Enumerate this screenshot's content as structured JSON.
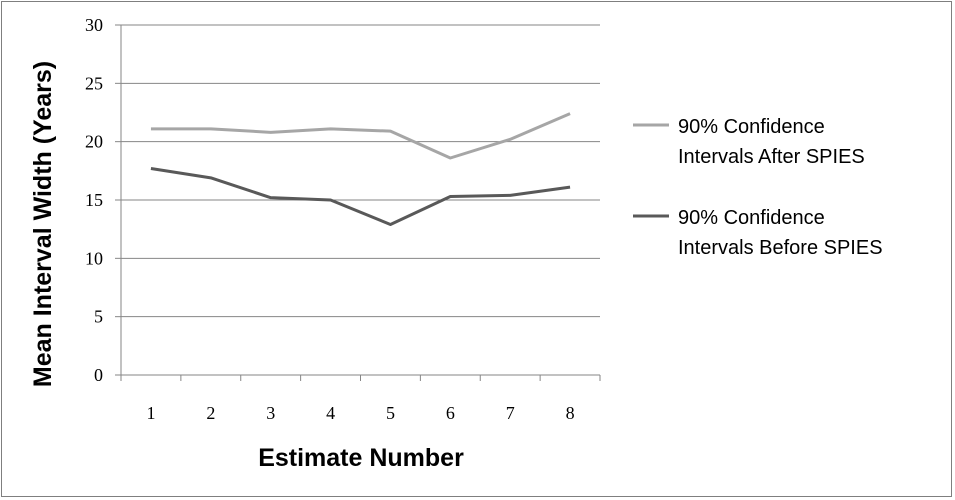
{
  "chart_data": {
    "type": "line",
    "categories": [
      "1",
      "2",
      "3",
      "4",
      "5",
      "6",
      "7",
      "8"
    ],
    "xlabel": "Estimate Number",
    "ylabel": "Mean Interval Width (Years)",
    "ylim": [
      0,
      30
    ],
    "yticks": [
      "0",
      "5",
      "10",
      "15",
      "20",
      "25",
      "30"
    ],
    "grid": "horizontal",
    "legend_position": "right",
    "series": [
      {
        "name_lines": [
          "90% Confidence",
          "Intervals After SPIES"
        ],
        "color": "#a6a6a6",
        "values": [
          21.1,
          21.1,
          20.8,
          21.1,
          20.9,
          18.6,
          20.2,
          22.4
        ]
      },
      {
        "name_lines": [
          "90% Confidence",
          "Intervals Before SPIES"
        ],
        "color": "#595959",
        "values": [
          17.7,
          16.9,
          15.2,
          15.0,
          12.9,
          15.3,
          15.4,
          16.1
        ]
      }
    ]
  }
}
